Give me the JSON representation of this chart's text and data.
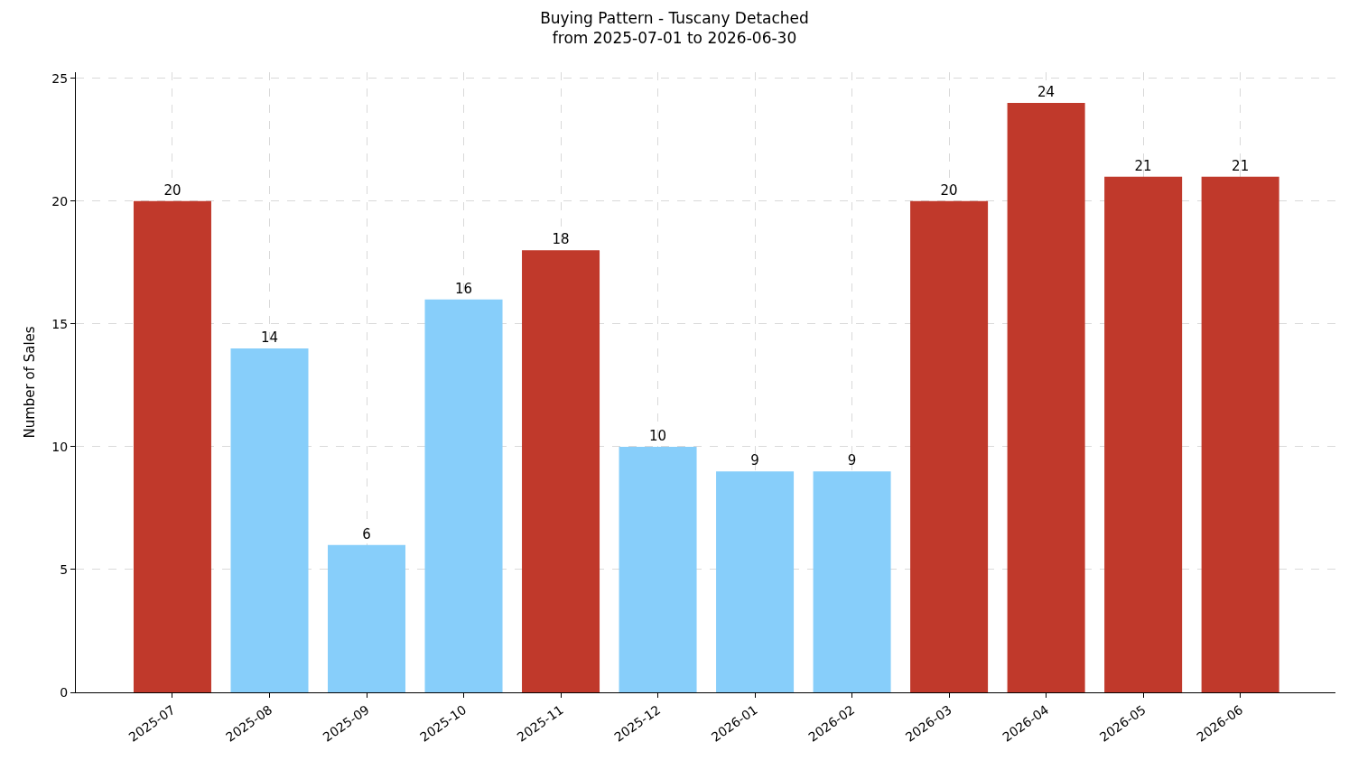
{
  "chart_data": {
    "type": "bar",
    "title": "Buying Pattern - Tuscany Detached\nfrom 2025-07-01 to 2026-06-30",
    "ylabel": "Number of Sales",
    "categories": [
      "2025-07",
      "2025-08",
      "2025-09",
      "2025-10",
      "2025-11",
      "2025-12",
      "2026-01",
      "2026-02",
      "2026-03",
      "2026-04",
      "2026-05",
      "2026-06"
    ],
    "values": [
      20,
      14,
      6,
      16,
      18,
      10,
      9,
      9,
      20,
      24,
      21,
      21
    ],
    "colors": [
      "#c0392b",
      "#87cefa",
      "#87cefa",
      "#87cefa",
      "#c0392b",
      "#87cefa",
      "#87cefa",
      "#87cefa",
      "#c0392b",
      "#c0392b",
      "#c0392b",
      "#c0392b"
    ],
    "ylim": [
      0,
      25.25
    ],
    "yticks": [
      0,
      5,
      10,
      15,
      20,
      25
    ],
    "grid": true,
    "data_labels": true
  }
}
